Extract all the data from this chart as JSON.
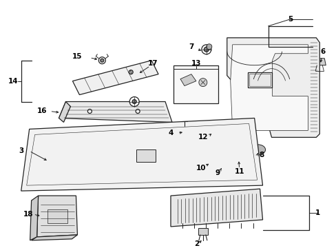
{
  "background_color": "#ffffff",
  "line_color": "#222222",
  "label_color": "#000000",
  "figsize": [
    4.89,
    3.6
  ],
  "dpi": 100
}
